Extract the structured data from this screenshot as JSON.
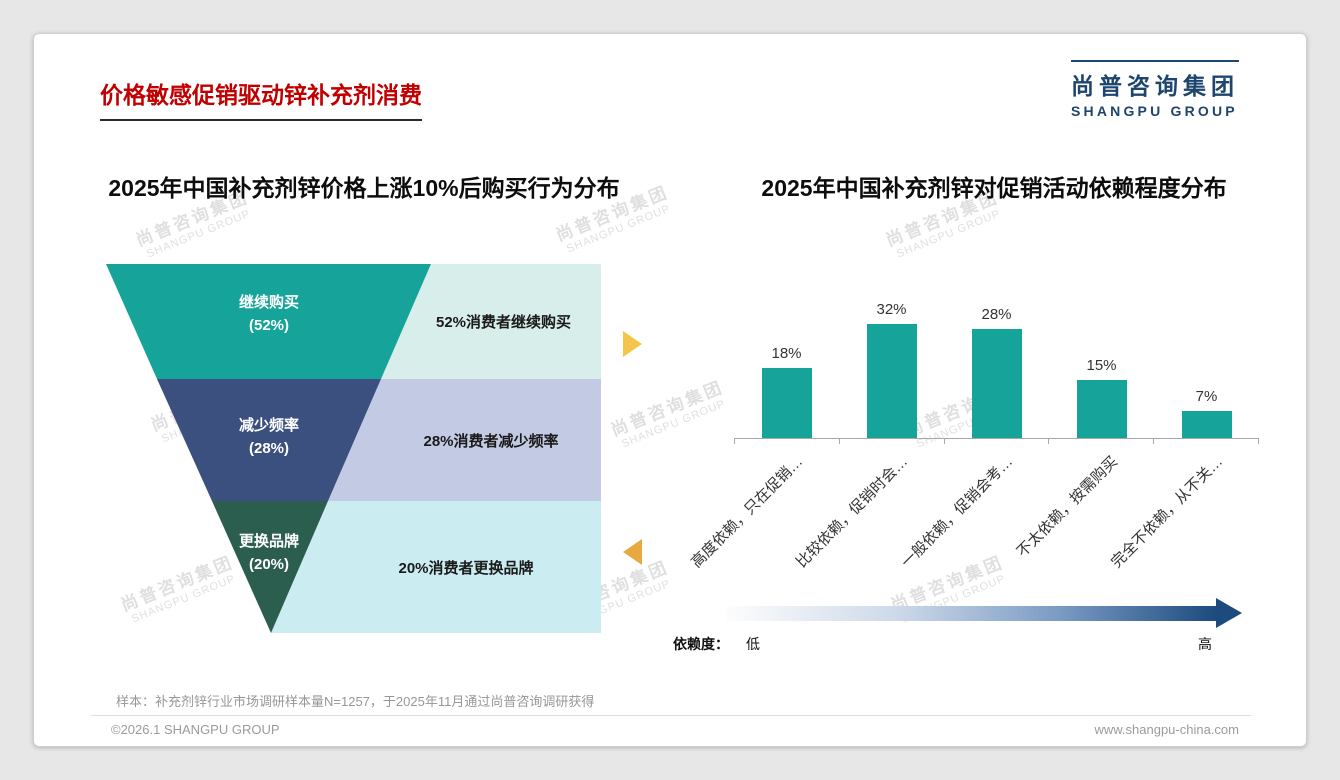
{
  "page": {
    "title": "价格敏感促销驱动锌补充剂消费",
    "logo": {
      "cn": "尚普咨询集团",
      "en": "SHANGPU GROUP"
    },
    "watermark": {
      "cn": "尚普咨询集团",
      "en": "SHANGPU GROUP"
    },
    "footnote": "样本：补充剂锌行业市场调研样本量N=1257，于2025年11月通过尚普咨询调研获得",
    "footer": {
      "left": "©2026.1 SHANGPU GROUP",
      "right": "www.shangpu-china.com"
    }
  },
  "chart_data": [
    {
      "type": "funnel",
      "title": "2025年中国补充剂锌价格上涨10%后购买行为分布",
      "stages": [
        {
          "name": "继续购买",
          "value": 52,
          "pct": "(52%)",
          "annotation": "52%消费者继续购买",
          "color": "#16a49a",
          "annotation_bg": "#d7eeea"
        },
        {
          "name": "减少频率",
          "value": 28,
          "pct": "(28%)",
          "annotation": "28%消费者减少频率",
          "color": "#3c5080",
          "annotation_bg": "#c2cbe3"
        },
        {
          "name": "更换品牌",
          "value": 20,
          "pct": "(20%)",
          "annotation": "20%消费者更换品牌",
          "color": "#2c5e50",
          "annotation_bg": "#cbedf2"
        }
      ]
    },
    {
      "type": "bar",
      "title": "2025年中国补充剂锌对促销活动依赖程度分布",
      "categories": [
        "高度依赖，只在促销…",
        "比较依赖，促销时会…",
        "一般依赖，促销会考…",
        "不太依赖，按需购买",
        "完全不依赖，从不关…"
      ],
      "values": [
        18,
        32,
        28,
        15,
        7
      ],
      "labels": [
        "18%",
        "32%",
        "28%",
        "15%",
        "7%"
      ],
      "bar_color": "#16a49a",
      "ylim": [
        0,
        35
      ],
      "grid": "off",
      "legend": "none",
      "dependency_axis": {
        "label": "依赖度：",
        "low": "低",
        "high": "高"
      }
    }
  ]
}
